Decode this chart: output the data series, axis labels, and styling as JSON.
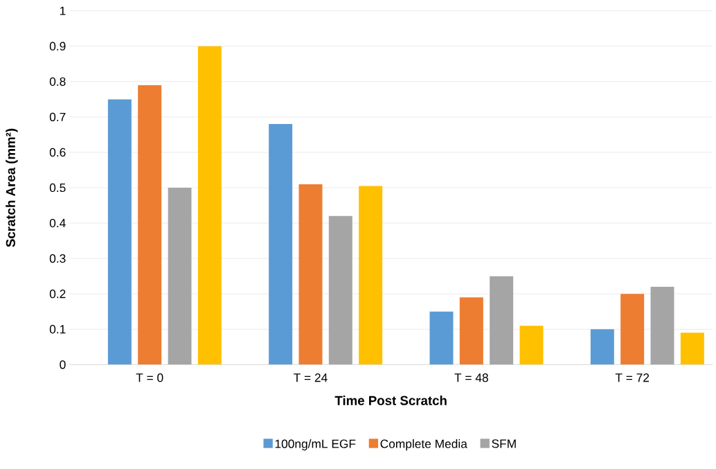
{
  "chart_data": {
    "type": "bar",
    "xlabel": "Time Post Scratch",
    "ylabel": "Scratch Area (mm²)",
    "categories": [
      "T = 0",
      "T = 24",
      "T = 48",
      "T = 72"
    ],
    "series": [
      {
        "name": "100ng/mL EGF",
        "color": "#5b9bd5",
        "values": [
          0.75,
          0.68,
          0.15,
          0.1
        ]
      },
      {
        "name": "Complete Media",
        "color": "#ed7d31",
        "values": [
          0.79,
          0.51,
          0.19,
          0.2
        ]
      },
      {
        "name": "SFM",
        "color": "#a5a5a5",
        "values": [
          0.5,
          0.42,
          0.25,
          0.22
        ]
      },
      {
        "color": "#ffc000",
        "values": [
          0.9,
          0.505,
          0.11,
          0.09
        ]
      }
    ],
    "ylim": [
      0,
      1
    ],
    "yticks": [
      0,
      0.1,
      0.2,
      0.3,
      0.4,
      0.5,
      0.6,
      0.7,
      0.8,
      0.9,
      1
    ],
    "grid": "y",
    "legend": "bottom"
  }
}
